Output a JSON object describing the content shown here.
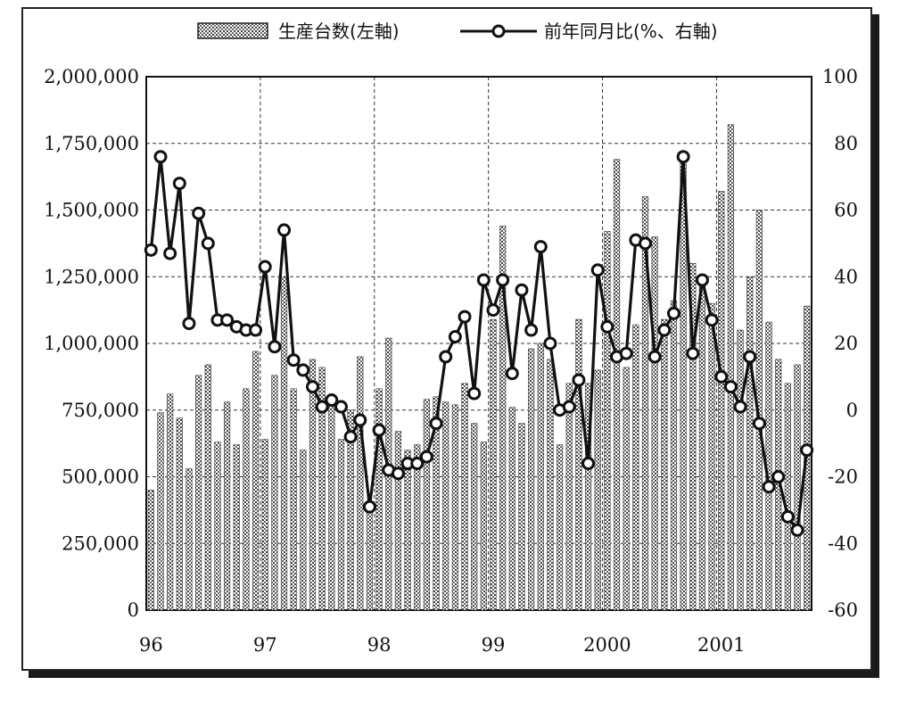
{
  "chart_data": {
    "type": "bar",
    "legend": {
      "placement": "top",
      "bar_label": "生産台数(左軸)",
      "line_label": "前年同月比(%、右軸)"
    },
    "x_tick_labels": [
      "96",
      "97",
      "98",
      "99",
      "2000",
      "2001"
    ],
    "y_left": {
      "range": [
        0,
        2000000
      ],
      "ticks": [
        "0",
        "250,000",
        "500,000",
        "750,000",
        "1,000,000",
        "1,250,000",
        "1,500,000",
        "1,750,000",
        "2,000,000"
      ]
    },
    "y_right": {
      "range": [
        -60,
        100
      ],
      "ticks": [
        "-60",
        "-40",
        "-20",
        "0",
        "20",
        "40",
        "60",
        "80",
        "100"
      ]
    },
    "grid": true,
    "series": [
      {
        "name": "生産台数(左軸)",
        "type": "bar",
        "axis": "left",
        "values": [
          450000,
          740000,
          810000,
          720000,
          530000,
          880000,
          920000,
          630000,
          780000,
          620000,
          830000,
          970000,
          640000,
          880000,
          1250000,
          830000,
          600000,
          940000,
          910000,
          800000,
          640000,
          750000,
          950000,
          390000,
          830000,
          1020000,
          670000,
          600000,
          620000,
          790000,
          800000,
          780000,
          770000,
          850000,
          700000,
          630000,
          1090000,
          1440000,
          760000,
          700000,
          980000,
          1000000,
          940000,
          620000,
          850000,
          1090000,
          850000,
          900000,
          1420000,
          1690000,
          910000,
          1070000,
          1550000,
          1400000,
          1090000,
          1160000,
          1700000,
          1300000,
          1250000,
          1150000,
          1570000,
          1820000,
          1050000,
          1250000,
          1500000,
          1080000,
          940000,
          850000,
          920000,
          1140000
        ]
      },
      {
        "name": "前年同月比(%、右軸)",
        "type": "line",
        "axis": "right",
        "values": [
          48,
          76,
          47,
          68,
          26,
          59,
          50,
          27,
          27,
          25,
          24,
          24,
          43,
          19,
          54,
          15,
          12,
          7,
          1,
          3,
          1,
          -8,
          -3,
          -29,
          -6,
          -18,
          -19,
          -16,
          -16,
          -14,
          -4,
          16,
          22,
          28,
          5,
          39,
          30,
          39,
          11,
          36,
          24,
          49,
          20,
          0,
          1,
          9,
          -16,
          42,
          25,
          16,
          17,
          51,
          50,
          16,
          24,
          29,
          76,
          17,
          39,
          27,
          10,
          7,
          1,
          16,
          -4,
          -23,
          -20,
          -32,
          -36,
          -12
        ]
      }
    ]
  }
}
